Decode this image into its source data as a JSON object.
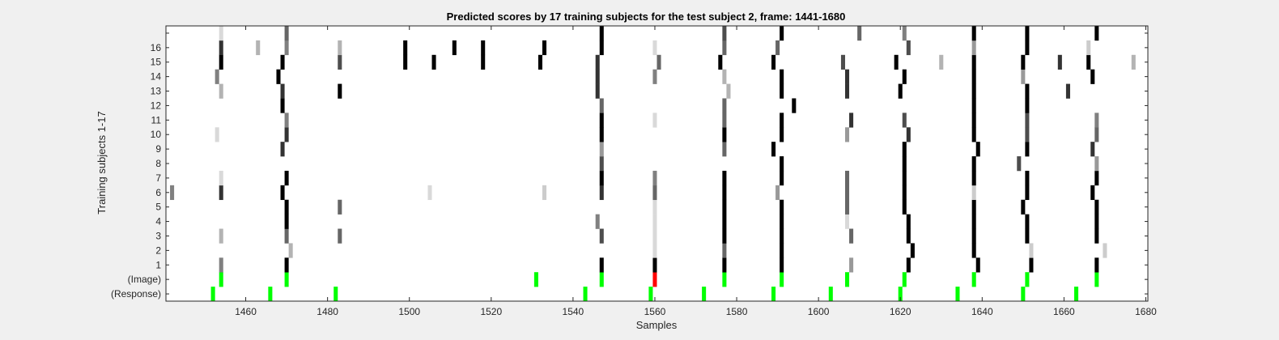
{
  "chart_data": {
    "type": "heatmap",
    "title": "Predicted scores by 17 training subjects for the test subject 2, frame: 1441-1680",
    "xlabel": "Samples",
    "ylabel": "Training subjects 1-17",
    "xlim": [
      1441,
      1680
    ],
    "xticks": [
      "1460",
      "1480",
      "1500",
      "1520",
      "1540",
      "1560",
      "1580",
      "1600",
      "1620",
      "1640",
      "1660",
      "1680"
    ],
    "xtick_values": [
      1460,
      1480,
      1500,
      1520,
      1540,
      1560,
      1580,
      1600,
      1620,
      1640,
      1660,
      1680
    ],
    "row_labels": [
      "(Response)",
      "(Image)",
      "1",
      "2",
      "3",
      "4",
      "5",
      "6",
      "7",
      "8",
      "9",
      "10",
      "11",
      "12",
      "13",
      "14",
      "15",
      "16",
      ""
    ],
    "colors": {
      "response": "#00ff00",
      "image": "#00ff00",
      "image_mismatch": "#ff0000",
      "background": "#ffffff"
    },
    "response_samples": [
      1452,
      1466,
      1482,
      1543,
      1559,
      1572,
      1589,
      1603,
      1620,
      1634,
      1650,
      1663
    ],
    "image_samples": [
      1454,
      1470,
      1531,
      1547,
      1577,
      1591,
      1607,
      1621,
      1638,
      1651,
      1668
    ],
    "image_mismatch_samples": [
      1560
    ],
    "subject_marks": [
      {
        "row": 1,
        "samples": [
          [
            1454,
            0.5
          ],
          [
            1470,
            0.0
          ],
          [
            1547,
            0.0
          ],
          [
            1560,
            0.0
          ],
          [
            1577,
            0.0
          ],
          [
            1591,
            0.0
          ],
          [
            1608,
            0.6
          ],
          [
            1622,
            0.0
          ],
          [
            1639,
            0.0
          ],
          [
            1652,
            0.0
          ],
          [
            1668,
            0.0
          ]
        ]
      },
      {
        "row": 2,
        "samples": [
          [
            1471,
            0.7
          ],
          [
            1560,
            0.85
          ],
          [
            1577,
            0.4
          ],
          [
            1591,
            0.0
          ],
          [
            1623,
            0.0
          ],
          [
            1638,
            0.0
          ],
          [
            1652,
            0.8
          ],
          [
            1670,
            0.8
          ]
        ]
      },
      {
        "row": 3,
        "samples": [
          [
            1454,
            0.7
          ],
          [
            1470,
            0.4
          ],
          [
            1483,
            0.4
          ],
          [
            1547,
            0.3
          ],
          [
            1560,
            0.85
          ],
          [
            1577,
            0.0
          ],
          [
            1591,
            0.0
          ],
          [
            1608,
            0.4
          ],
          [
            1622,
            0.0
          ],
          [
            1638,
            0.0
          ],
          [
            1651,
            0.0
          ],
          [
            1668,
            0.0
          ]
        ]
      },
      {
        "row": 4,
        "samples": [
          [
            1470,
            0.0
          ],
          [
            1546,
            0.5
          ],
          [
            1560,
            0.85
          ],
          [
            1577,
            0.0
          ],
          [
            1591,
            0.0
          ],
          [
            1607,
            0.85
          ],
          [
            1622,
            0.0
          ],
          [
            1638,
            0.0
          ],
          [
            1651,
            0.0
          ],
          [
            1668,
            0.0
          ]
        ]
      },
      {
        "row": 5,
        "samples": [
          [
            1470,
            0.0
          ],
          [
            1483,
            0.4
          ],
          [
            1560,
            0.85
          ],
          [
            1577,
            0.0
          ],
          [
            1591,
            0.0
          ],
          [
            1607,
            0.4
          ],
          [
            1621,
            0.0
          ],
          [
            1638,
            0.0
          ],
          [
            1650,
            0.0
          ],
          [
            1668,
            0.0
          ]
        ]
      },
      {
        "row": 6,
        "samples": [
          [
            1442,
            0.5
          ],
          [
            1454,
            0.2
          ],
          [
            1469,
            0.0
          ],
          [
            1505,
            0.85
          ],
          [
            1533,
            0.8
          ],
          [
            1547,
            0.2
          ],
          [
            1560,
            0.4
          ],
          [
            1577,
            0.0
          ],
          [
            1590,
            0.6
          ],
          [
            1607,
            0.4
          ],
          [
            1621,
            0.0
          ],
          [
            1638,
            0.8
          ],
          [
            1651,
            0.0
          ],
          [
            1667,
            0.0
          ]
        ]
      },
      {
        "row": 7,
        "samples": [
          [
            1454,
            0.85
          ],
          [
            1470,
            0.0
          ],
          [
            1547,
            0.0
          ],
          [
            1560,
            0.5
          ],
          [
            1577,
            0.0
          ],
          [
            1591,
            0.0
          ],
          [
            1607,
            0.4
          ],
          [
            1621,
            0.0
          ],
          [
            1638,
            0.0
          ],
          [
            1651,
            0.0
          ],
          [
            1668,
            0.0
          ]
        ]
      },
      {
        "row": 8,
        "samples": [
          [
            1547,
            0.3
          ],
          [
            1591,
            0.0
          ],
          [
            1621,
            0.0
          ],
          [
            1638,
            0.0
          ],
          [
            1649,
            0.3
          ],
          [
            1668,
            0.6
          ]
        ]
      },
      {
        "row": 9,
        "samples": [
          [
            1469,
            0.2
          ],
          [
            1547,
            0.6
          ],
          [
            1577,
            0.4
          ],
          [
            1589,
            0.0
          ],
          [
            1621,
            0.0
          ],
          [
            1639,
            0.0
          ],
          [
            1651,
            0.0
          ],
          [
            1667,
            0.2
          ]
        ]
      },
      {
        "row": 10,
        "samples": [
          [
            1453,
            0.85
          ],
          [
            1470,
            0.2
          ],
          [
            1547,
            0.0
          ],
          [
            1577,
            0.0
          ],
          [
            1591,
            0.0
          ],
          [
            1607,
            0.6
          ],
          [
            1622,
            0.2
          ],
          [
            1638,
            0.0
          ],
          [
            1651,
            0.3
          ],
          [
            1668,
            0.4
          ]
        ]
      },
      {
        "row": 11,
        "samples": [
          [
            1470,
            0.5
          ],
          [
            1547,
            0.0
          ],
          [
            1560,
            0.85
          ],
          [
            1577,
            0.4
          ],
          [
            1591,
            0.0
          ],
          [
            1608,
            0.2
          ],
          [
            1621,
            0.3
          ],
          [
            1638,
            0.0
          ],
          [
            1651,
            0.3
          ],
          [
            1668,
            0.5
          ]
        ]
      },
      {
        "row": 12,
        "samples": [
          [
            1469,
            0.0
          ],
          [
            1547,
            0.4
          ],
          [
            1577,
            0.4
          ],
          [
            1594,
            0.0
          ],
          [
            1638,
            0.0
          ],
          [
            1651,
            0.0
          ]
        ]
      },
      {
        "row": 13,
        "samples": [
          [
            1454,
            0.7
          ],
          [
            1469,
            0.2
          ],
          [
            1483,
            0.0
          ],
          [
            1546,
            0.2
          ],
          [
            1578,
            0.7
          ],
          [
            1591,
            0.0
          ],
          [
            1607,
            0.2
          ],
          [
            1620,
            0.0
          ],
          [
            1638,
            0.0
          ],
          [
            1651,
            0.0
          ],
          [
            1661,
            0.2
          ]
        ]
      },
      {
        "row": 14,
        "samples": [
          [
            1453,
            0.5
          ],
          [
            1468,
            0.0
          ],
          [
            1546,
            0.2
          ],
          [
            1560,
            0.5
          ],
          [
            1577,
            0.7
          ],
          [
            1591,
            0.0
          ],
          [
            1607,
            0.2
          ],
          [
            1621,
            0.0
          ],
          [
            1638,
            0.0
          ],
          [
            1650,
            0.6
          ],
          [
            1667,
            0.0
          ]
        ]
      },
      {
        "row": 15,
        "samples": [
          [
            1454,
            0.0
          ],
          [
            1469,
            0.0
          ],
          [
            1483,
            0.3
          ],
          [
            1499,
            0.0
          ],
          [
            1506,
            0.0
          ],
          [
            1518,
            0.0
          ],
          [
            1532,
            0.0
          ],
          [
            1546,
            0.2
          ],
          [
            1561,
            0.4
          ],
          [
            1576,
            0.0
          ],
          [
            1589,
            0.0
          ],
          [
            1606,
            0.3
          ],
          [
            1619,
            0.0
          ],
          [
            1630,
            0.7
          ],
          [
            1638,
            0.0
          ],
          [
            1650,
            0.0
          ],
          [
            1659,
            0.2
          ],
          [
            1666,
            0.0
          ],
          [
            1677,
            0.7
          ]
        ]
      },
      {
        "row": 16,
        "samples": [
          [
            1454,
            0.2
          ],
          [
            1463,
            0.7
          ],
          [
            1470,
            0.5
          ],
          [
            1483,
            0.7
          ],
          [
            1499,
            0.0
          ],
          [
            1511,
            0.0
          ],
          [
            1518,
            0.0
          ],
          [
            1533,
            0.0
          ],
          [
            1547,
            0.0
          ],
          [
            1560,
            0.85
          ],
          [
            1577,
            0.4
          ],
          [
            1590,
            0.4
          ],
          [
            1622,
            0.3
          ],
          [
            1638,
            0.6
          ],
          [
            1651,
            0.0
          ],
          [
            1666,
            0.8
          ]
        ]
      },
      {
        "row": 17,
        "samples": [
          [
            1454,
            0.85
          ],
          [
            1470,
            0.4
          ],
          [
            1547,
            0.0
          ],
          [
            1577,
            0.3
          ],
          [
            1591,
            0.0
          ],
          [
            1610,
            0.4
          ],
          [
            1621,
            0.5
          ],
          [
            1638,
            0.0
          ],
          [
            1651,
            0.0
          ],
          [
            1668,
            0.0
          ]
        ]
      }
    ]
  }
}
